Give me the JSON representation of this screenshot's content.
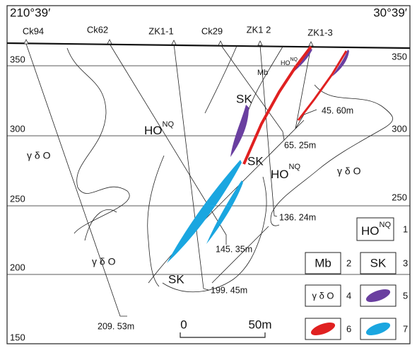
{
  "header": {
    "left": "210°39′",
    "right": "30°39′"
  },
  "boreholes": [
    "Ck94",
    "Ck62",
    "ZK1-1",
    "Ck29",
    "ZK1 2",
    "ZK1-3"
  ],
  "depth_labels": [
    "45. 60m",
    "65. 25m",
    "136. 24m",
    "145. 35m",
    "199. 45m",
    "209. 53m"
  ],
  "elevations": {
    "left": [
      350,
      300,
      250,
      200,
      150
    ],
    "right": [
      350,
      300,
      250
    ]
  },
  "rock_labels": [
    {
      "base": "HO",
      "sup": "NQ"
    },
    {
      "base": "HO",
      "sup": "NQ"
    },
    {
      "base": "HO",
      "sup": "NQ"
    },
    "Mb",
    "SK",
    "SK",
    "SK",
    "γ δ O",
    "γ δ O",
    "γ δ O"
  ],
  "legend": [
    {
      "number": 1,
      "symbol": {
        "base": "HO",
        "sup": "NQ"
      }
    },
    {
      "number": 2,
      "symbol": "Mb"
    },
    {
      "number": 3,
      "symbol": "SK"
    },
    {
      "number": 4,
      "symbol": "γ δ O"
    },
    {
      "number": 5
    },
    {
      "number": 6
    },
    {
      "number": 7
    }
  ],
  "scale": {
    "start": "0",
    "end": "50m"
  }
}
